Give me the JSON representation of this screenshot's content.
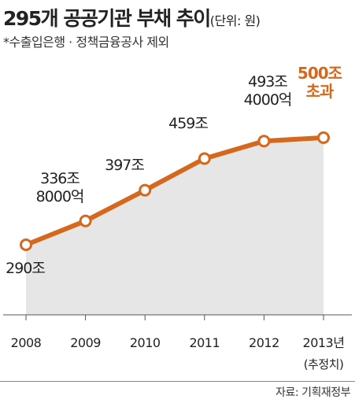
{
  "header": {
    "title": "295개 공공기관 부채 추이",
    "unit": "(단위: 원)",
    "note": "*수출입은행 · 정책금융공사 제외"
  },
  "source": "자료: 기획재정부",
  "colors": {
    "line": "#d4691d",
    "highlight_label": "#d4691d",
    "area": "#e6e6e6",
    "text": "#222222"
  },
  "chart_data": {
    "type": "line",
    "x": [
      "2008",
      "2009",
      "2010",
      "2011",
      "2012",
      "2013년"
    ],
    "x_sublabels": [
      "",
      "",
      "",
      "",
      "",
      "(추정치)"
    ],
    "values": [
      290,
      336.8,
      397,
      459,
      493.4,
      500
    ],
    "point_labels": [
      [
        "290조"
      ],
      [
        "336조",
        "8000억"
      ],
      [
        "397조"
      ],
      [
        "459조"
      ],
      [
        "493조",
        "4000억"
      ],
      [
        "500조",
        "초과"
      ]
    ],
    "highlight_index": 5,
    "title": "295개 공공기관 부채 추이",
    "ylabel": "",
    "grid": false,
    "filled_area": true
  }
}
